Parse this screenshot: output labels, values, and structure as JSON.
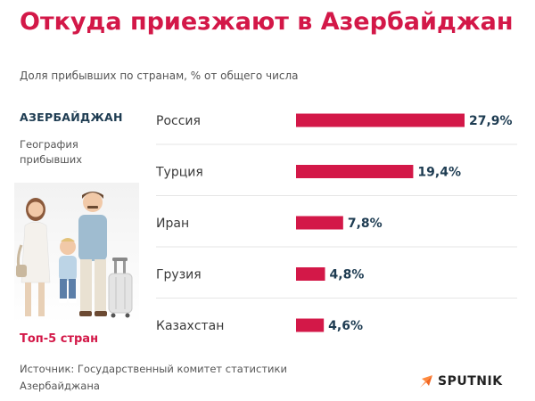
{
  "header": {
    "title": "Откуда приезжают в Азербайджан",
    "subtitle": "Доля прибывших по странам, % от общего числа"
  },
  "sidebar": {
    "country": "АЗЕРБАЙДЖАН",
    "caption": "География прибывших",
    "top_label": "Топ-5 стран"
  },
  "footer": {
    "source": "Источник: Государственный комитет статистики Азербайджана",
    "brand": "SPUTNIK"
  },
  "colors": {
    "accent": "#d31848",
    "value_text": "#1e3c52"
  },
  "chart_data": {
    "type": "bar",
    "orientation": "horizontal",
    "categories": [
      "Россия",
      "Турция",
      "Иран",
      "Грузия",
      "Казахстан"
    ],
    "values": [
      27.9,
      19.4,
      7.8,
      4.8,
      4.6
    ],
    "value_labels": [
      "27,9%",
      "19,4%",
      "7,8%",
      "4,8%",
      "4,6%"
    ],
    "title": "Откуда приезжают в Азербайджан",
    "subtitle": "Доля прибывших по странам, % от общего числа",
    "xlabel": "",
    "ylabel": "",
    "xlim": [
      0,
      27.9
    ],
    "grid": false,
    "legend": "none"
  }
}
